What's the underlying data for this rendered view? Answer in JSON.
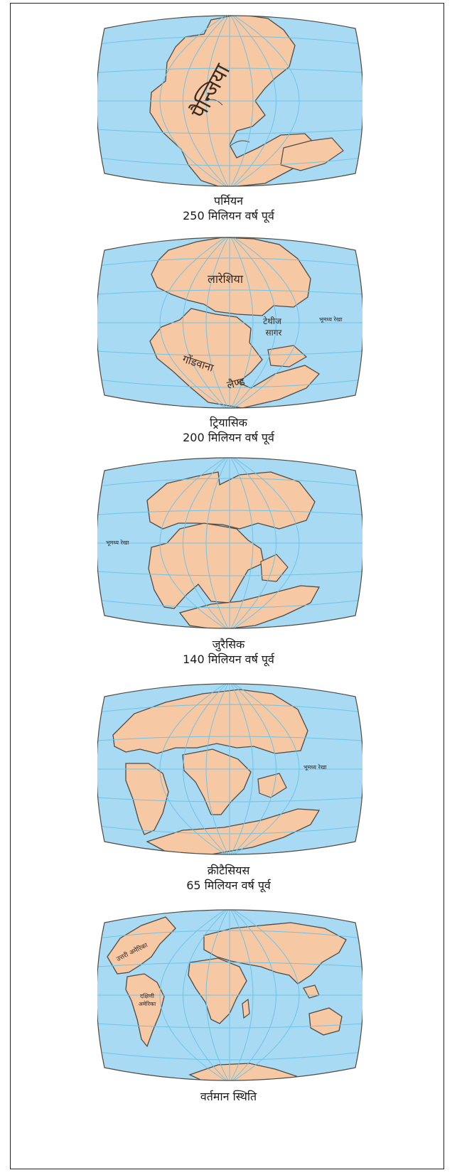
{
  "colors": {
    "ocean": "#a8daf3",
    "land": "#f7c8a4",
    "coast": "#4f4a44",
    "grid": "#6fc3e6"
  },
  "periods": [
    {
      "name": "पर्मियन",
      "age": "250 मिलियन वर्ष पूर्व",
      "labels": {
        "supercontinent": "पैन्जिया"
      }
    },
    {
      "name": "ट्रियासिक",
      "age": "200 मिलियन वर्ष पूर्व",
      "labels": {
        "north": "लारेशिया",
        "south_a": "गोंडवाना",
        "south_b": "लैण्ड",
        "sea_a": "टेथीज",
        "sea_b": "सागर",
        "equator": "भूमध्य रेखा"
      }
    },
    {
      "name": "जुरैसिक",
      "age": "140 मिलियन वर्ष पूर्व",
      "labels": {
        "equator": "भूमध्य रेखा"
      }
    },
    {
      "name": "क्रीटैसियस",
      "age": "65 मिलियन वर्ष पूर्व",
      "labels": {
        "equator": "भूमध्य रेखा"
      }
    },
    {
      "name": "वर्तमान स्थिति",
      "age": "",
      "labels": {
        "north_america": "उत्तरी अमेरिका",
        "south_america_a": "दक्षिणी",
        "south_america_b": "अमेरिका"
      }
    }
  ]
}
